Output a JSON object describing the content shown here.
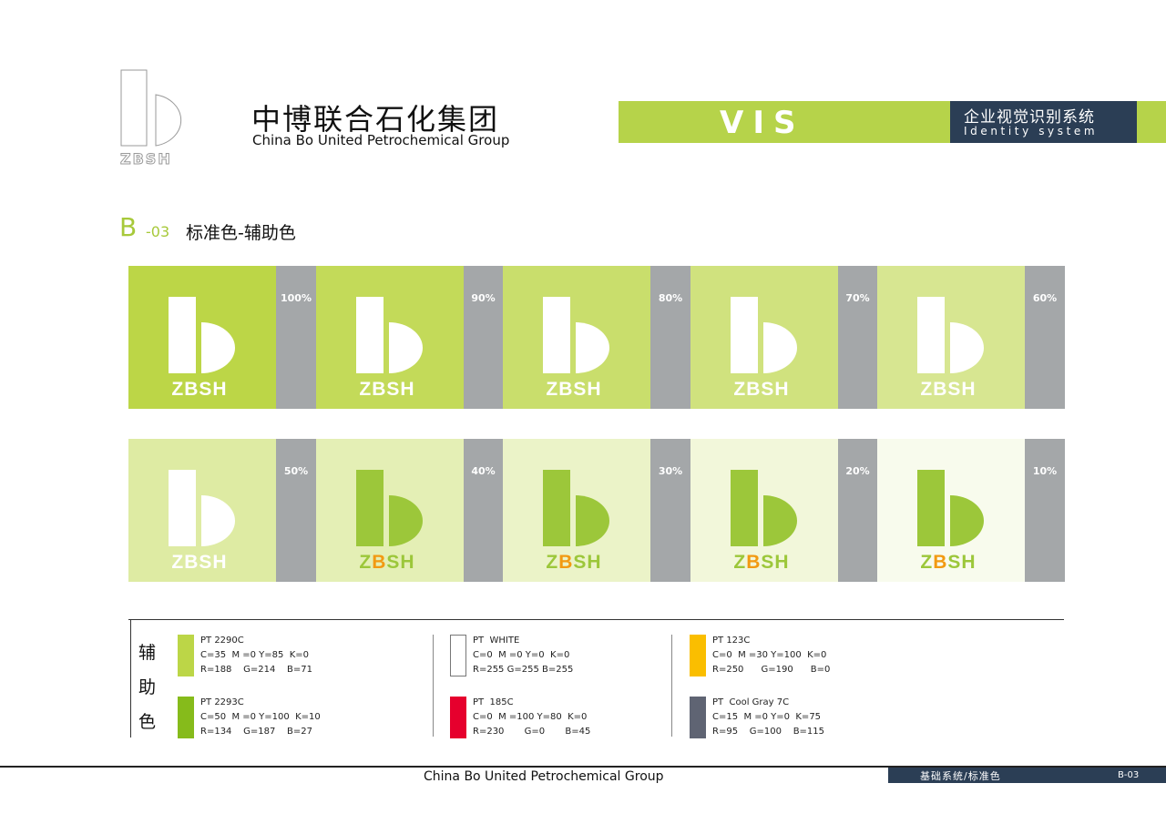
{
  "header": {
    "logo_text": "ZBSH",
    "company_cn": "中博联合石化集团",
    "company_en": "China Bo United Petrochemical Group",
    "vis": "VIS",
    "system_cn": "企业视觉识别系统",
    "system_en": "Identity system"
  },
  "section": {
    "letter": "B",
    "number": "-03",
    "title": "标准色-辅助色"
  },
  "tiles": [
    {
      "label": "100%",
      "color": "#bcd647",
      "logo": "white"
    },
    {
      "label": "90%",
      "color": "#c3da59",
      "logo": "white"
    },
    {
      "label": "80%",
      "color": "#c9de6c",
      "logo": "white"
    },
    {
      "label": "70%",
      "color": "#d0e27e",
      "logo": "white"
    },
    {
      "label": "60%",
      "color": "#d7e691",
      "logo": "white"
    },
    {
      "label": "50%",
      "color": "#deeba3",
      "logo": "white"
    },
    {
      "label": "40%",
      "color": "#e4efb5",
      "logo": "color"
    },
    {
      "label": "30%",
      "color": "#ebf3c8",
      "logo": "color"
    },
    {
      "label": "20%",
      "color": "#f2f7da",
      "logo": "color"
    },
    {
      "label": "10%",
      "color": "#f8fbed",
      "logo": "color"
    }
  ],
  "tile_logo_text": "ZBSH",
  "legend": {
    "label": [
      "辅",
      "助",
      "色"
    ],
    "swatches": [
      {
        "name": "PT 2290C",
        "cmyk": "C=35  M =0 Y=85  K=0",
        "rgb": "R=188    G=214    B=71",
        "color": "#bcd647"
      },
      {
        "name": "PT 2293C",
        "cmyk": "C=50  M =0 Y=100  K=10",
        "rgb": "R=134    G=187    B=27",
        "color": "#86bb1b"
      },
      {
        "name": "PT  WHITE",
        "cmyk": "C=0  M =0 Y=0  K=0",
        "rgb": "R=255 G=255 B=255",
        "color": "#ffffff"
      },
      {
        "name": "PT  185C",
        "cmyk": "C=0  M =100 Y=80  K=0",
        "rgb": "R=230       G=0       B=45",
        "color": "#e6002d"
      },
      {
        "name": "PT 123C",
        "cmyk": "C=0  M =30 Y=100  K=0",
        "rgb": "R=250      G=190      B=0",
        "color": "#fabe00"
      },
      {
        "name": "PT  Cool Gray 7C",
        "cmyk": "C=15  M =0 Y=0  K=75",
        "rgb": "R=95    G=100    B=115",
        "color": "#5f6473"
      }
    ]
  },
  "footer": {
    "company_en": "China Bo United Petrochemical Group",
    "section": "基础系统/标准色",
    "page": "B-03"
  }
}
